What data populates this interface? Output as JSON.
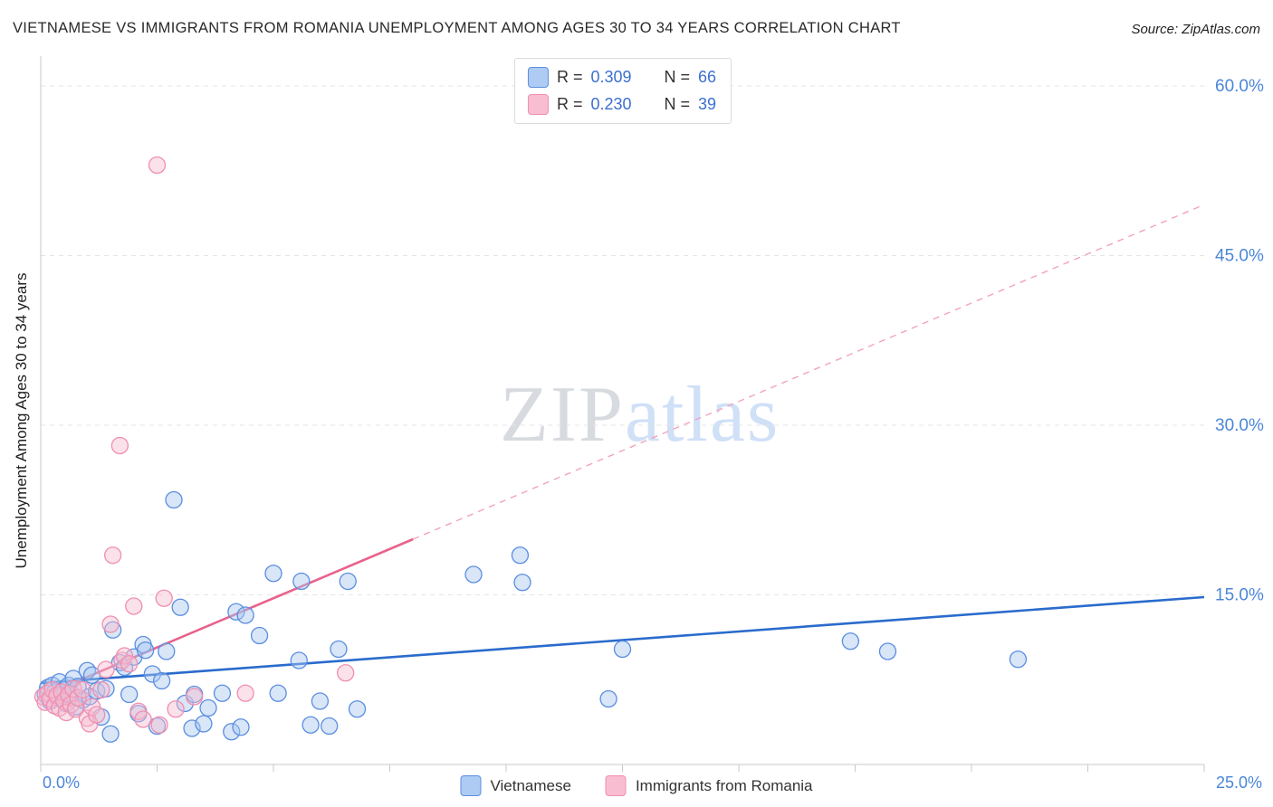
{
  "header": {
    "title": "VIETNAMESE VS IMMIGRANTS FROM ROMANIA UNEMPLOYMENT AMONG AGES 30 TO 34 YEARS CORRELATION CHART",
    "source": "Source: ZipAtlas.com"
  },
  "watermark": {
    "part1": "ZIP",
    "part2": "atlas"
  },
  "legend_stats": {
    "rows": [
      {
        "series": "Vietnamese",
        "r_label": "R =",
        "r_value": "0.309",
        "n_label": "N =",
        "n_value": "66"
      },
      {
        "series": "Immigrants from Romania",
        "r_label": "R =",
        "r_value": "0.230",
        "n_label": "N =",
        "n_value": "39"
      }
    ]
  },
  "series_legend": {
    "items": [
      {
        "label": "Vietnamese"
      },
      {
        "label": "Immigrants from Romania"
      }
    ]
  },
  "chart_data": {
    "type": "scatter",
    "title": "Vietnamese vs Immigrants from Romania Unemployment Among Ages 30 to 34 years",
    "xlabel": "",
    "ylabel": "Unemployment Among Ages 30 to 34 years",
    "units": "percent",
    "xlim": [
      0,
      25
    ],
    "ylim": [
      0,
      62
    ],
    "grid": true,
    "x_corner_tick_labels": [
      "0.0%",
      "25.0%"
    ],
    "y_gridlines": [
      15,
      30,
      45,
      60
    ],
    "y_tick_labels": [
      "15.0%",
      "30.0%",
      "45.0%",
      "60.0%"
    ],
    "x_minor_tick_step": 2.5,
    "series": [
      {
        "name": "Vietnamese",
        "stroke": "#5b8ee0",
        "fill": "#a8c8f0",
        "points": [
          [
            0.1,
            6.2
          ],
          [
            0.15,
            6.8
          ],
          [
            0.2,
            5.6
          ],
          [
            0.25,
            7.0
          ],
          [
            0.3,
            6.4
          ],
          [
            0.35,
            5.9
          ],
          [
            0.4,
            7.3
          ],
          [
            0.45,
            6.1
          ],
          [
            0.5,
            6.6
          ],
          [
            0.55,
            5.4
          ],
          [
            0.6,
            7.0
          ],
          [
            0.65,
            6.3
          ],
          [
            0.7,
            7.6
          ],
          [
            0.75,
            5.1
          ],
          [
            0.8,
            6.9
          ],
          [
            0.9,
            5.7
          ],
          [
            1.0,
            8.3
          ],
          [
            1.05,
            6.0
          ],
          [
            1.1,
            7.9
          ],
          [
            1.2,
            6.5
          ],
          [
            1.3,
            4.2
          ],
          [
            1.4,
            6.7
          ],
          [
            1.5,
            2.7
          ],
          [
            1.55,
            11.9
          ],
          [
            1.7,
            9.0
          ],
          [
            1.8,
            8.6
          ],
          [
            1.9,
            6.2
          ],
          [
            2.0,
            9.5
          ],
          [
            2.1,
            4.5
          ],
          [
            2.2,
            10.6
          ],
          [
            2.25,
            10.1
          ],
          [
            2.4,
            8.0
          ],
          [
            2.5,
            3.4
          ],
          [
            2.6,
            7.4
          ],
          [
            2.7,
            10.0
          ],
          [
            2.86,
            23.4
          ],
          [
            3.0,
            13.9
          ],
          [
            3.1,
            5.4
          ],
          [
            3.25,
            3.2
          ],
          [
            3.3,
            6.2
          ],
          [
            3.5,
            3.6
          ],
          [
            3.6,
            5.0
          ],
          [
            3.9,
            6.3
          ],
          [
            4.1,
            2.9
          ],
          [
            4.2,
            13.5
          ],
          [
            4.3,
            3.3
          ],
          [
            4.4,
            13.2
          ],
          [
            4.7,
            11.4
          ],
          [
            5.0,
            16.9
          ],
          [
            5.1,
            6.3
          ],
          [
            5.55,
            9.2
          ],
          [
            5.6,
            16.2
          ],
          [
            5.8,
            3.5
          ],
          [
            6.0,
            5.6
          ],
          [
            6.2,
            3.4
          ],
          [
            6.4,
            10.2
          ],
          [
            6.6,
            16.2
          ],
          [
            6.8,
            4.9
          ],
          [
            9.3,
            16.8
          ],
          [
            10.3,
            18.5
          ],
          [
            10.35,
            16.1
          ],
          [
            12.2,
            5.8
          ],
          [
            12.5,
            10.2
          ],
          [
            17.4,
            10.9
          ],
          [
            18.2,
            10.0
          ],
          [
            21.0,
            9.3
          ]
        ]
      },
      {
        "name": "Immigrants from Romania",
        "stroke": "#ef8fb0",
        "fill": "#f7bcd0",
        "points": [
          [
            0.05,
            6.0
          ],
          [
            0.1,
            5.5
          ],
          [
            0.15,
            6.3
          ],
          [
            0.2,
            5.8
          ],
          [
            0.25,
            6.6
          ],
          [
            0.3,
            5.2
          ],
          [
            0.35,
            6.1
          ],
          [
            0.4,
            5.0
          ],
          [
            0.45,
            6.4
          ],
          [
            0.5,
            5.6
          ],
          [
            0.55,
            4.6
          ],
          [
            0.6,
            6.2
          ],
          [
            0.65,
            5.3
          ],
          [
            0.7,
            6.7
          ],
          [
            0.75,
            4.9
          ],
          [
            0.8,
            5.9
          ],
          [
            0.9,
            6.6
          ],
          [
            1.0,
            4.1
          ],
          [
            1.05,
            3.6
          ],
          [
            1.1,
            5.1
          ],
          [
            1.2,
            4.4
          ],
          [
            1.3,
            6.6
          ],
          [
            1.4,
            8.4
          ],
          [
            1.5,
            12.4
          ],
          [
            1.55,
            18.5
          ],
          [
            1.7,
            28.2
          ],
          [
            1.75,
            9.2
          ],
          [
            1.8,
            9.6
          ],
          [
            1.9,
            8.9
          ],
          [
            2.0,
            14.0
          ],
          [
            2.1,
            4.7
          ],
          [
            2.2,
            4.0
          ],
          [
            2.5,
            53.0
          ],
          [
            2.55,
            3.5
          ],
          [
            2.65,
            14.7
          ],
          [
            2.9,
            4.9
          ],
          [
            3.3,
            6.0
          ],
          [
            4.4,
            6.3
          ],
          [
            6.55,
            8.1
          ]
        ]
      }
    ],
    "trend_lines": [
      {
        "name": "Vietnamese",
        "color": "#2a6bcc",
        "style": "solid",
        "start": [
          0,
          7.2
        ],
        "end": [
          25,
          14.8
        ]
      },
      {
        "name": "Immigrants from Romania",
        "color": "#e8638c",
        "dash_color": "#f2a3bc",
        "style": "solid-then-dashed",
        "solid_until_x": 8,
        "start": [
          0,
          6.0
        ],
        "end": [
          25,
          49.5
        ]
      }
    ],
    "legend_position": "bottom-center"
  }
}
